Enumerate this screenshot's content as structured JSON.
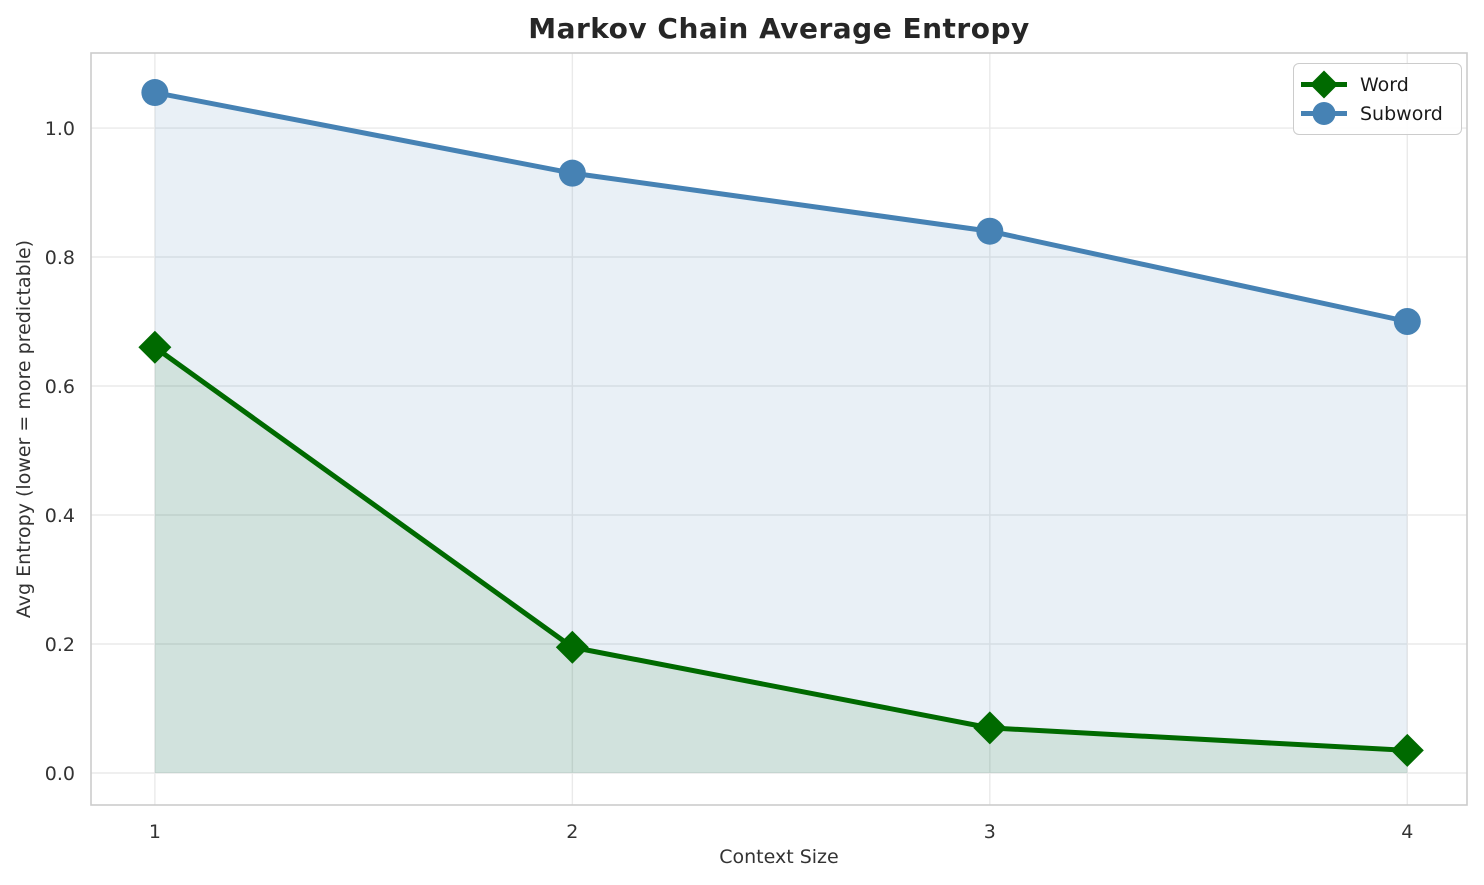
{
  "title": "Markov Chain Average Entropy",
  "chart_data": {
    "type": "line",
    "title": "Markov Chain Average Entropy",
    "xlabel": "Context Size",
    "ylabel": "Avg Entropy (lower = more predictable)",
    "x": [
      1,
      2,
      3,
      4
    ],
    "xtick_labels": [
      "1",
      "2",
      "3",
      "4"
    ],
    "ytick_values": [
      0.0,
      0.2,
      0.4,
      0.6,
      0.8,
      1.0
    ],
    "ytick_labels": [
      "0.0",
      "0.2",
      "0.4",
      "0.6",
      "0.8",
      "1.0"
    ],
    "xlim": [
      0.847,
      4.143
    ],
    "ylim": [
      -0.0496,
      1.1163
    ],
    "grid": true,
    "legend_position": "upper right",
    "fill_baseline": 0,
    "series": [
      {
        "name": "Word",
        "marker": "diamond",
        "color": "#006a00",
        "fill_color": "rgba(0,106,0,0.10)",
        "values": [
          0.66,
          0.195,
          0.07,
          0.035
        ]
      },
      {
        "name": "Subword",
        "marker": "circle",
        "color": "#4682b4",
        "fill_color": "rgba(70,130,180,0.12)",
        "values": [
          1.055,
          0.93,
          0.84,
          0.7
        ]
      }
    ]
  },
  "colors": {
    "background": "#ffffff",
    "grid": "#eaeaea",
    "spine": "#cccccc",
    "tick_text": "#333333",
    "title_text": "#262626",
    "legend_border": "#cccccc"
  }
}
